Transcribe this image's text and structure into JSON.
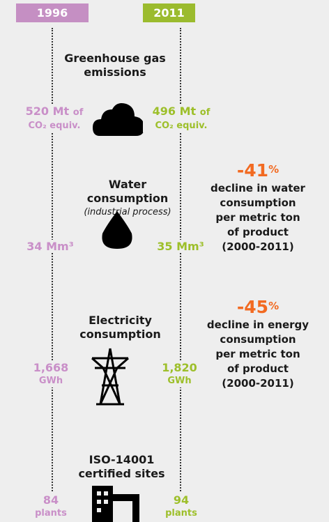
{
  "header": {
    "left_year": "1996",
    "right_year": "2011"
  },
  "sections": [
    {
      "title_lines": [
        "Greenhouse gas",
        "emissions"
      ],
      "left": {
        "value": "520 Mt",
        "unit": "of",
        "unit2": "CO₂ equiv."
      },
      "right": {
        "value": "496 Mt",
        "unit": "of",
        "unit2": "CO₂ equiv."
      }
    },
    {
      "title_lines": [
        "Water",
        "consumption"
      ],
      "subtitle": "(industrial process)",
      "left": {
        "value": "34 Mm³"
      },
      "right": {
        "value": "35 Mm³"
      },
      "stat": {
        "number": "-41",
        "suffix": "%",
        "lines": [
          "decline in water",
          "consumption",
          "per metric ton",
          "of product",
          "(2000-2011)"
        ]
      }
    },
    {
      "title_lines": [
        "Electricity",
        "consumption"
      ],
      "left": {
        "value": "1,668",
        "unit": "GWh"
      },
      "right": {
        "value": "1,820",
        "unit": "GWh"
      },
      "stat": {
        "number": "-45",
        "suffix": "%",
        "lines": [
          "decline in energy",
          "consumption",
          "per metric ton",
          "of product",
          "(2000-2011)"
        ]
      }
    },
    {
      "title_lines": [
        "ISO-14001",
        "certified sites"
      ],
      "left": {
        "value": "84",
        "unit": "plants"
      },
      "right": {
        "value": "94",
        "unit": "plants"
      }
    }
  ]
}
